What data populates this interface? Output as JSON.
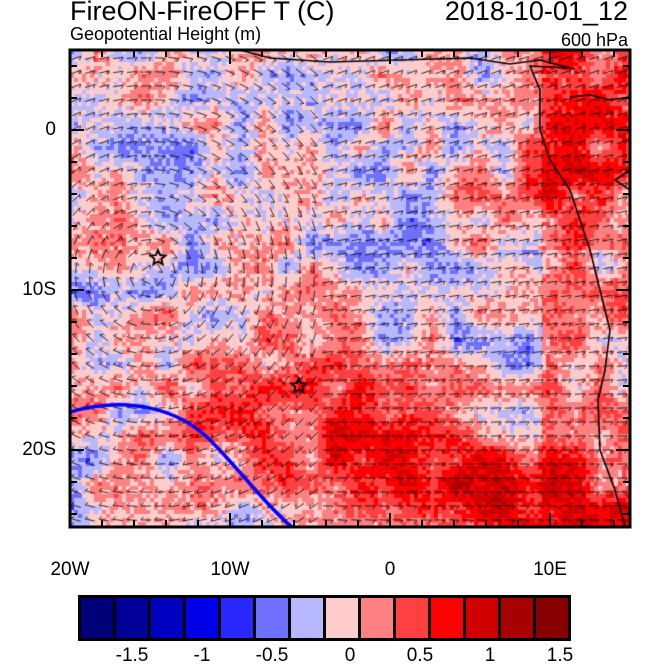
{
  "header": {
    "title": "FireON-FireOFF T (C)",
    "datetime": "2018-10-01_12",
    "subtitle": "Geopotential Height (m)",
    "level": "600 hPa"
  },
  "axes": {
    "lat_labels": [
      {
        "lat": 0,
        "label": "0"
      },
      {
        "lat": -10,
        "label": "10S"
      },
      {
        "lat": -20,
        "label": "20S"
      }
    ],
    "lon_labels": [
      {
        "lon": -20,
        "label": "20W"
      },
      {
        "lon": -10,
        "label": "10W"
      },
      {
        "lon": 0,
        "label": "0"
      },
      {
        "lon": 10,
        "label": "10E"
      }
    ],
    "lon_range": [
      -20,
      15
    ],
    "lat_range": [
      -25,
      5
    ]
  },
  "colorbar": {
    "colors": [
      "#000078",
      "#000098",
      "#0000c0",
      "#0000e8",
      "#2828ff",
      "#7070ff",
      "#b8b8ff",
      "#ffcccc",
      "#ff8080",
      "#ff4040",
      "#ff0000",
      "#d00000",
      "#a80000",
      "#880000"
    ],
    "labels": [
      "-1.5",
      "-1",
      "-0.5",
      "0",
      "0.5",
      "1",
      "1.5"
    ]
  },
  "markers": [
    {
      "type": "star",
      "lon": -14.5,
      "lat": -8
    },
    {
      "type": "star",
      "lon": -5.7,
      "lat": -16
    }
  ]
}
